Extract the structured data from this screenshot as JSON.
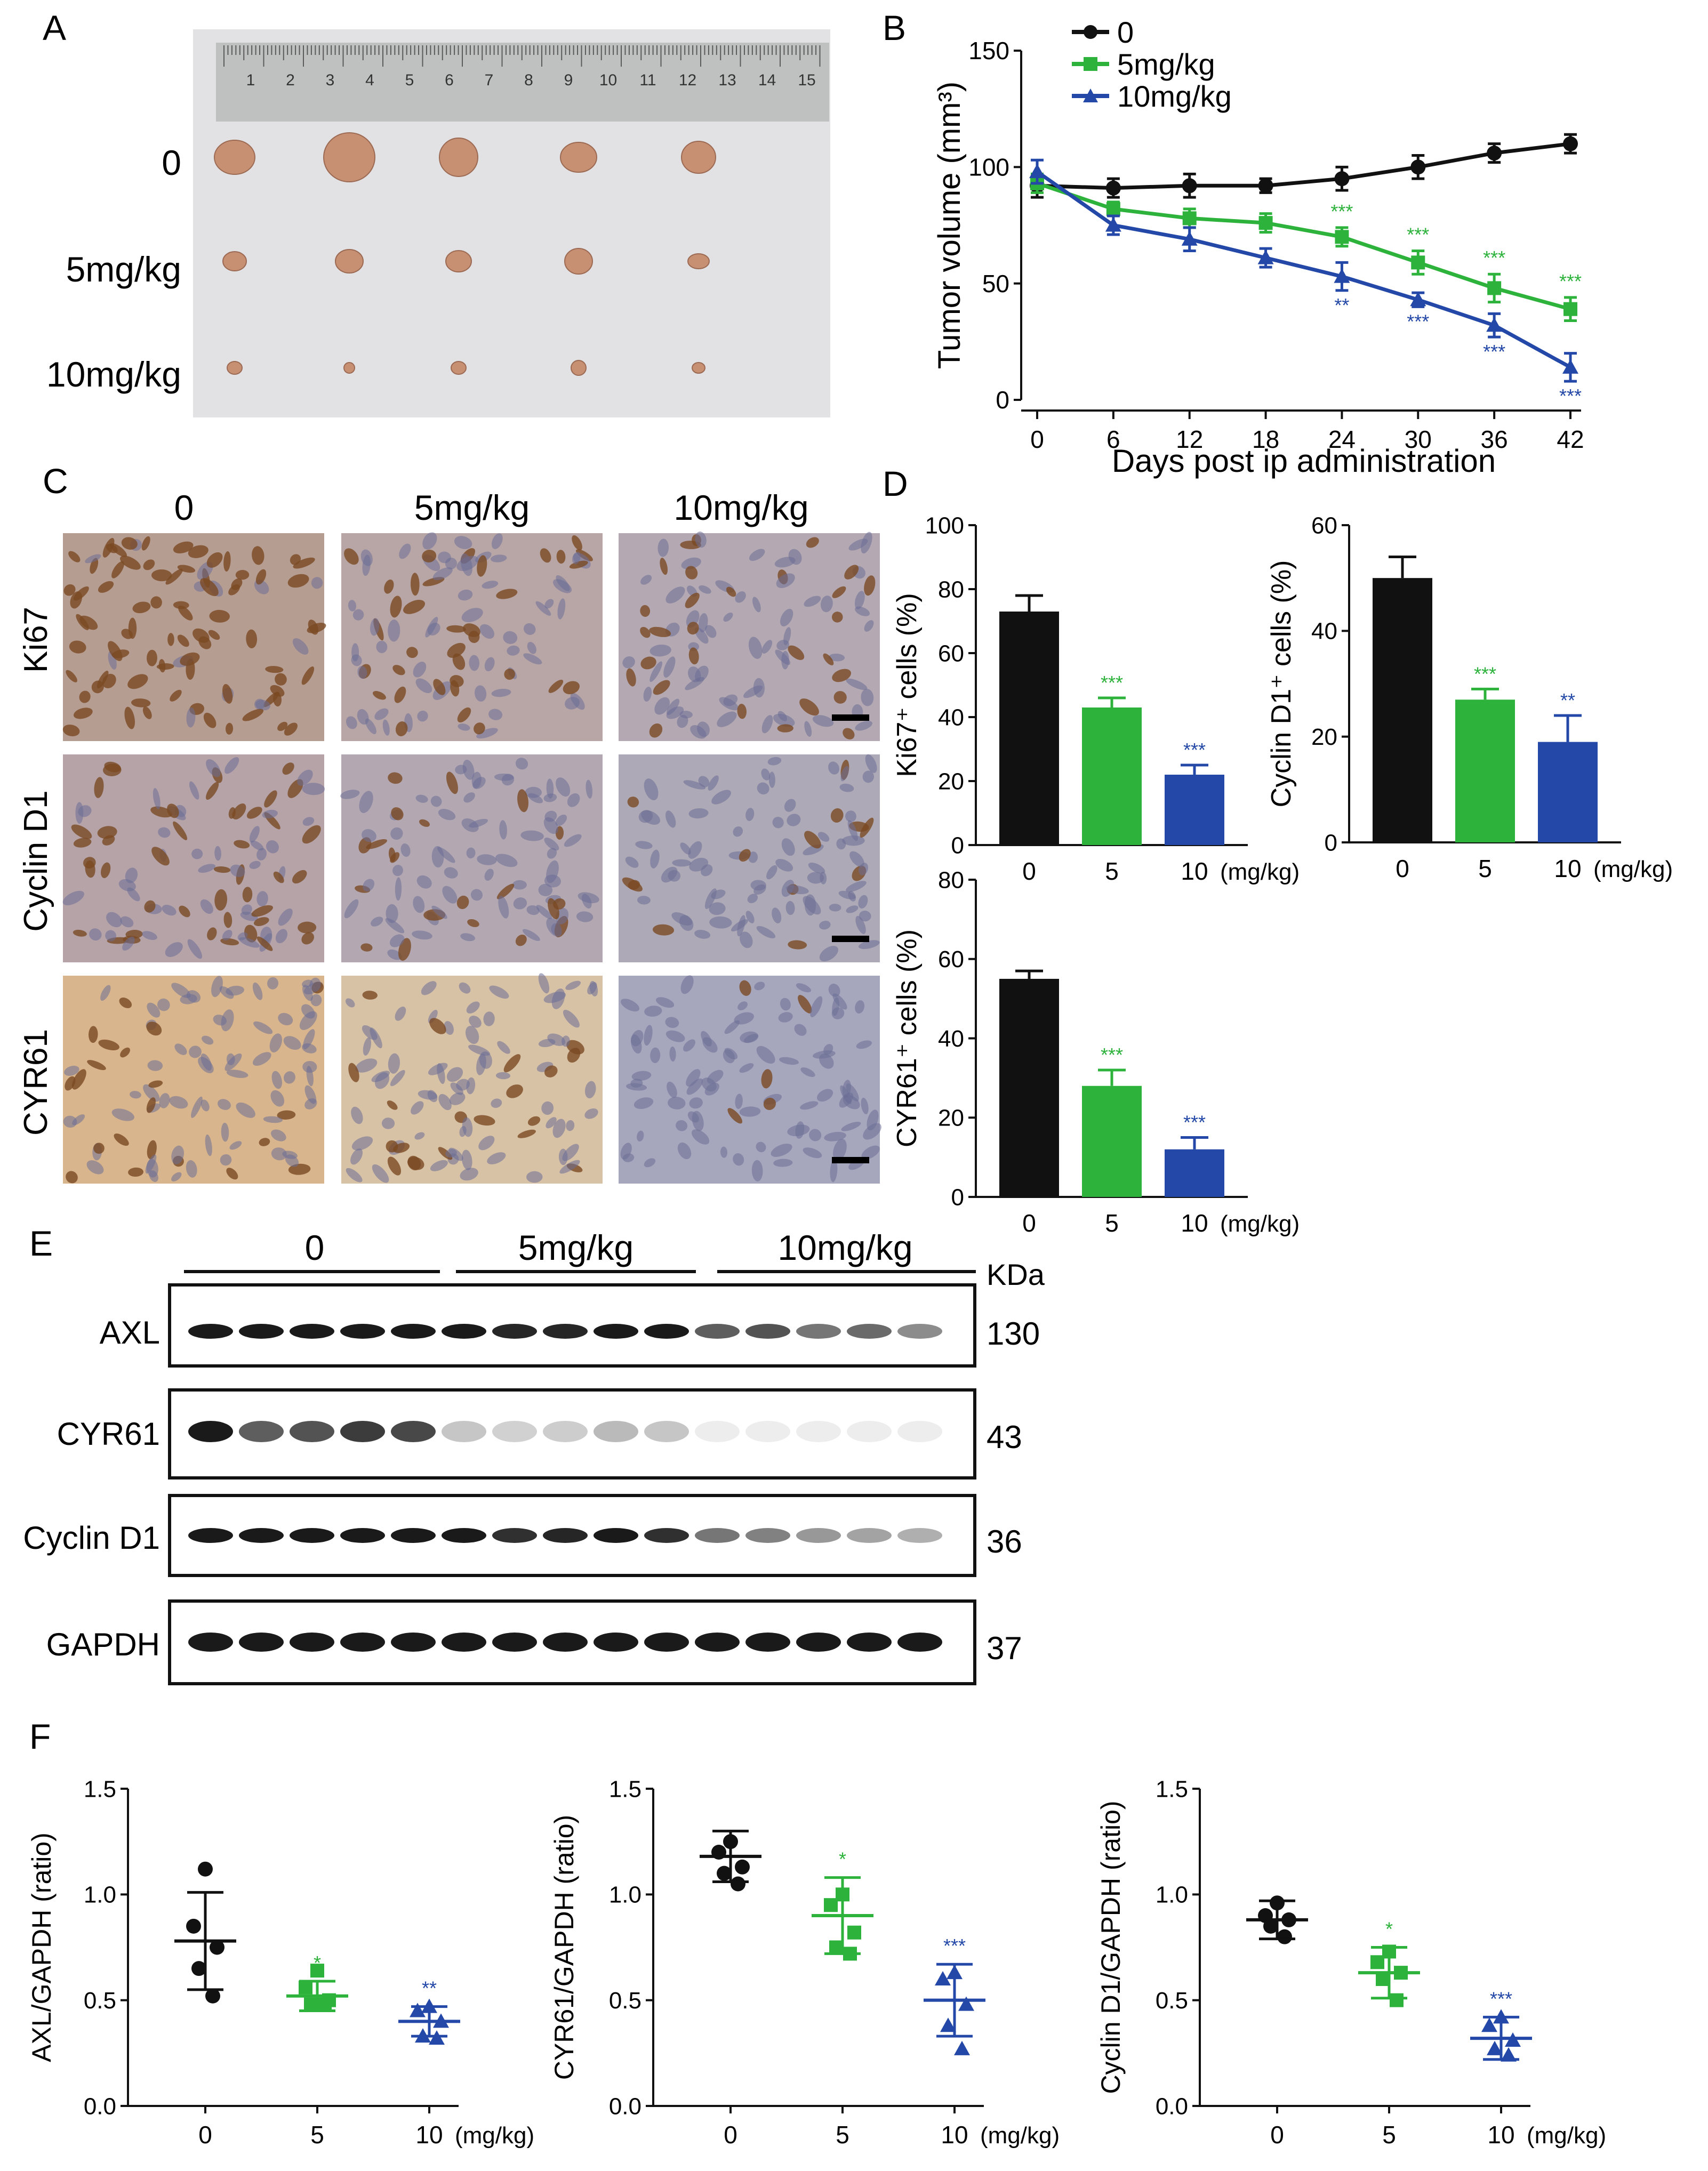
{
  "colors": {
    "black": "#111111",
    "green": "#2db33c",
    "blue": "#2448a8",
    "gray": "#4a4a4a",
    "photo_bg": "#e2e1e4",
    "ruler": "#bfc0c0",
    "tumor": "#c79073",
    "ihc_bg": "#b7a8ad",
    "ihc_brown": "#7a4a23",
    "ihc_blue": "#6b6e95",
    "blot_band": "#1a1a1a"
  },
  "panels": {
    "A": {
      "letter": "A",
      "row_labels": [
        "0",
        "5mg/kg",
        "10mg/kg"
      ],
      "ruler_marks": [
        "1",
        "2",
        "3",
        "4",
        "5",
        "6",
        "7",
        "8",
        "9",
        "10",
        "11",
        "12",
        "13",
        "14",
        "15"
      ]
    },
    "B": {
      "letter": "B",
      "legend": [
        "0",
        "5mg/kg",
        "10mg/kg"
      ]
    },
    "C": {
      "letter": "C",
      "col_labels": [
        "0",
        "5mg/kg",
        "10mg/kg"
      ],
      "row_labels": [
        "Ki67",
        "Cyclin D1",
        "CYR61"
      ]
    },
    "D": {
      "letter": "D"
    },
    "E": {
      "letter": "E",
      "group_labels": [
        "0",
        "5mg/kg",
        "10mg/kg"
      ],
      "kda_label": "KDa",
      "rows": [
        {
          "protein": "AXL",
          "kda": "130"
        },
        {
          "protein": "CYR61",
          "kda": "43"
        },
        {
          "protein": "Cyclin D1",
          "kda": "36"
        },
        {
          "protein": "GAPDH",
          "kda": "37"
        }
      ]
    },
    "F": {
      "letter": "F"
    }
  },
  "chart_data": [
    {
      "id": "B",
      "type": "line",
      "xlabel": "Days post ip administration",
      "ylabel": "Tumor volume (mm³)",
      "x": [
        0,
        6,
        12,
        18,
        24,
        30,
        36,
        42
      ],
      "ylim": [
        0,
        150
      ],
      "yticks": [
        "0",
        "50",
        "100",
        "150"
      ],
      "series": [
        {
          "name": "0",
          "color": "#111111",
          "values": [
            92,
            91,
            92,
            92,
            95,
            100,
            106,
            110
          ],
          "errors": [
            5,
            4,
            5,
            3,
            5,
            5,
            4,
            4
          ],
          "sig": [
            "",
            "",
            "",
            "",
            "",
            "",
            "",
            ""
          ]
        },
        {
          "name": "5mg/kg",
          "color": "#2db33c",
          "values": [
            93,
            82,
            78,
            76,
            70,
            59,
            48,
            39
          ],
          "errors": [
            4,
            3,
            4,
            4,
            4,
            5,
            6,
            5
          ],
          "sig": [
            "",
            "",
            "",
            "",
            "***",
            "***",
            "***",
            "***"
          ]
        },
        {
          "name": "10mg/kg",
          "color": "#2448a8",
          "values": [
            98,
            75,
            69,
            61,
            53,
            43,
            32,
            14
          ],
          "errors": [
            5,
            4,
            5,
            4,
            6,
            3,
            5,
            6
          ],
          "sig": [
            "",
            "",
            "",
            "",
            "**",
            "***",
            "***",
            "***"
          ]
        }
      ]
    },
    {
      "id": "D1",
      "type": "bar",
      "ylabel": "Ki67⁺ cells (%)",
      "categories": [
        "0",
        "5",
        "10"
      ],
      "unit_label": "(mg/kg)",
      "ylim": [
        0,
        100
      ],
      "yticks": [
        "0",
        "20",
        "40",
        "60",
        "80",
        "100"
      ],
      "values": [
        73,
        43,
        22
      ],
      "errors": [
        5,
        3,
        3
      ],
      "sig": [
        "",
        "***",
        "***"
      ]
    },
    {
      "id": "D2",
      "type": "bar",
      "ylabel": "Cyclin D1⁺ cells (%)",
      "categories": [
        "0",
        "5",
        "10"
      ],
      "unit_label": "(mg/kg)",
      "ylim": [
        0,
        60
      ],
      "yticks": [
        "0",
        "20",
        "40",
        "60"
      ],
      "values": [
        50,
        27,
        19
      ],
      "errors": [
        4,
        2,
        5
      ],
      "sig": [
        "",
        "***",
        "**"
      ]
    },
    {
      "id": "D3",
      "type": "bar",
      "ylabel": "CYR61⁺ cells (%)",
      "categories": [
        "0",
        "5",
        "10"
      ],
      "unit_label": "(mg/kg)",
      "ylim": [
        0,
        80
      ],
      "yticks": [
        "0",
        "20",
        "40",
        "60",
        "80"
      ],
      "values": [
        55,
        28,
        12
      ],
      "errors": [
        2,
        4,
        3
      ],
      "sig": [
        "",
        "***",
        "***"
      ]
    },
    {
      "id": "F1",
      "type": "scatter",
      "ylabel": "AXL/GAPDH (ratio)",
      "categories": [
        "0",
        "5",
        "10"
      ],
      "unit_label": "(mg/kg)",
      "ylim": [
        0,
        1.5
      ],
      "yticks": [
        "0.0",
        "0.5",
        "1.0",
        "1.5"
      ],
      "groups": [
        {
          "points": [
            1.12,
            0.85,
            0.75,
            0.65,
            0.52
          ],
          "mean": 0.78,
          "sd": 0.23,
          "sig": ""
        },
        {
          "points": [
            0.64,
            0.56,
            0.5,
            0.48,
            0.48
          ],
          "mean": 0.52,
          "sd": 0.07,
          "sig": "*"
        },
        {
          "points": [
            0.47,
            0.45,
            0.4,
            0.33,
            0.32
          ],
          "mean": 0.4,
          "sd": 0.07,
          "sig": "**"
        }
      ]
    },
    {
      "id": "F2",
      "type": "scatter",
      "ylabel": "CYR61/GAPDH (ratio)",
      "categories": [
        "0",
        "5",
        "10"
      ],
      "unit_label": "(mg/kg)",
      "ylim": [
        0,
        1.5
      ],
      "yticks": [
        "0.0",
        "0.5",
        "1.0",
        "1.5"
      ],
      "groups": [
        {
          "points": [
            1.25,
            1.2,
            1.13,
            1.1,
            1.05
          ],
          "mean": 1.18,
          "sd": 0.12,
          "sig": ""
        },
        {
          "points": [
            1.0,
            0.95,
            0.82,
            0.75,
            0.72
          ],
          "mean": 0.9,
          "sd": 0.18,
          "sig": "*"
        },
        {
          "points": [
            0.63,
            0.6,
            0.48,
            0.38,
            0.27
          ],
          "mean": 0.5,
          "sd": 0.17,
          "sig": "***"
        }
      ]
    },
    {
      "id": "F3",
      "type": "scatter",
      "ylabel": "Cyclin D1/GAPDH (ratio)",
      "categories": [
        "0",
        "5",
        "10"
      ],
      "unit_label": "(mg/kg)",
      "ylim": [
        0,
        1.5
      ],
      "yticks": [
        "0.0",
        "0.5",
        "1.0",
        "1.5"
      ],
      "groups": [
        {
          "points": [
            0.96,
            0.9,
            0.88,
            0.85,
            0.8
          ],
          "mean": 0.88,
          "sd": 0.09,
          "sig": ""
        },
        {
          "points": [
            0.73,
            0.68,
            0.63,
            0.6,
            0.5
          ],
          "mean": 0.63,
          "sd": 0.12,
          "sig": "*"
        },
        {
          "points": [
            0.42,
            0.38,
            0.31,
            0.27,
            0.24
          ],
          "mean": 0.32,
          "sd": 0.1,
          "sig": "***"
        }
      ]
    }
  ]
}
